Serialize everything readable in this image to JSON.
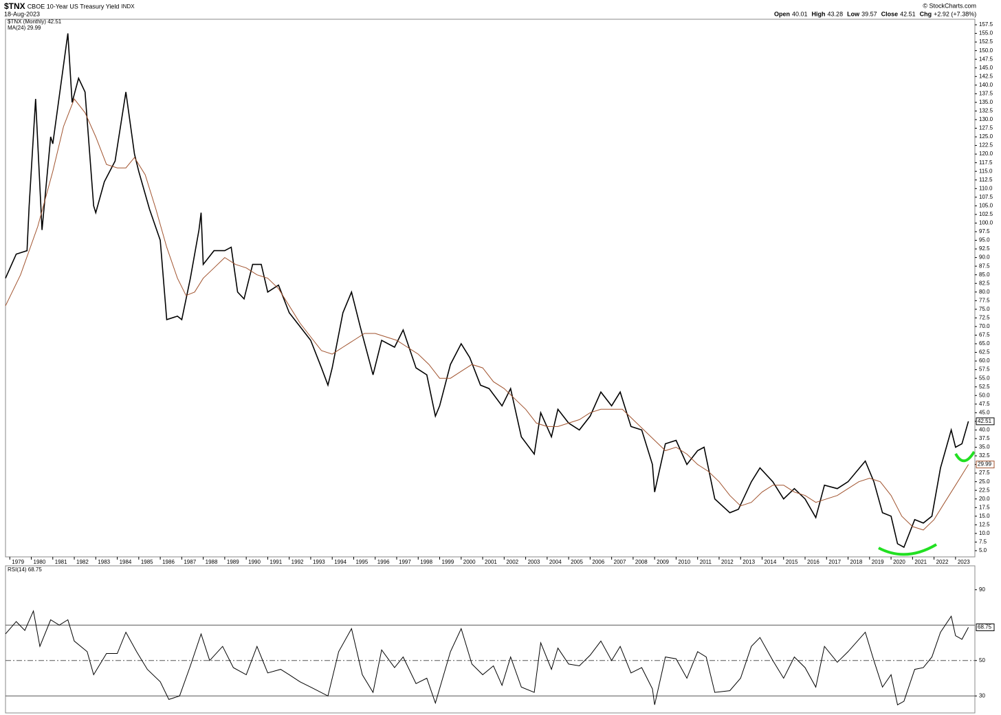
{
  "chart_data": [
    {
      "type": "line",
      "title": "$TNX",
      "subtitle": "CBOE 10-Year US Treasury Yield",
      "exchange": "INDX",
      "date": "18-Aug-2023",
      "source": "© StockCharts.com",
      "quote": [
        {
          "label": "Open",
          "value": 40.01
        },
        {
          "label": "High",
          "value": 43.28
        },
        {
          "label": "Low",
          "value": 39.57
        },
        {
          "label": "Close",
          "value": 42.51
        },
        {
          "label": "Chg",
          "value": "+2.92 (+7.38%)"
        }
      ],
      "xlim": [
        1978.8,
        2023.9
      ],
      "xticks": [
        1979,
        1980,
        1981,
        1982,
        1983,
        1984,
        1985,
        1986,
        1987,
        1988,
        1989,
        1990,
        1991,
        1992,
        1993,
        1994,
        1995,
        1996,
        1997,
        1998,
        1999,
        2000,
        2001,
        2002,
        2003,
        2004,
        2005,
        2006,
        2007,
        2008,
        2009,
        2010,
        2011,
        2012,
        2013,
        2014,
        2015,
        2016,
        2017,
        2018,
        2019,
        2020,
        2021,
        2022,
        2023
      ],
      "ylim": [
        3.2,
        159.1
      ],
      "yticks": [
        {
          "value": 5,
          "label": "5.0"
        },
        7.5,
        {
          "value": 10,
          "label": "10.0"
        },
        12.5,
        {
          "value": 15,
          "label": "15.0"
        },
        17.5,
        {
          "value": 20,
          "label": "20.0"
        },
        22.5,
        {
          "value": 25,
          "label": "25.0"
        },
        27.5,
        {
          "value": 30,
          "label": "30.0"
        },
        32.5,
        {
          "value": 35,
          "label": "35.0"
        },
        37.5,
        {
          "value": 40,
          "label": "40.0"
        },
        42.5,
        {
          "value": 45,
          "label": "45.0"
        },
        47.5,
        {
          "value": 50,
          "label": "50.0"
        },
        52.5,
        {
          "value": 55,
          "label": "55.0"
        },
        57.5,
        {
          "value": 60,
          "label": "60.0"
        },
        62.5,
        {
          "value": 65,
          "label": "65.0"
        },
        67.5,
        {
          "value": 70,
          "label": "70.0"
        },
        72.5,
        {
          "value": 75,
          "label": "75.0"
        },
        77.5,
        {
          "value": 80,
          "label": "80.0"
        },
        82.5,
        {
          "value": 85,
          "label": "85.0"
        },
        87.5,
        {
          "value": 90,
          "label": "90.0"
        },
        92.5,
        {
          "value": 95,
          "label": "95.0"
        },
        97.5,
        {
          "value": 100,
          "label": "100.0"
        },
        102.5,
        {
          "value": 105,
          "label": "105.0"
        },
        107.5,
        {
          "value": 110,
          "label": "110.0"
        },
        112.5,
        {
          "value": 115,
          "label": "115.0"
        },
        117.5,
        {
          "value": 120,
          "label": "120.0"
        },
        122.5,
        {
          "value": 125,
          "label": "125.0"
        },
        127.5,
        {
          "value": 130,
          "label": "130.0"
        },
        132.5,
        {
          "value": 135,
          "label": "135.0"
        },
        137.5,
        {
          "value": 140,
          "label": "140.0"
        },
        142.5,
        {
          "value": 145,
          "label": "145.0"
        },
        147.5,
        {
          "value": 150,
          "label": "150.0"
        },
        152.5,
        {
          "value": 155,
          "label": "155.0"
        },
        157.5
      ],
      "series": [
        {
          "name": "$TNX (Monthly) 42.51",
          "color": "#000000",
          "tag": "42.51",
          "x": [
            1978.8,
            1979.3,
            1979.8,
            1979.9,
            1980.2,
            1980.5,
            1980.9,
            1981.0,
            1981.7,
            1981.9,
            1982.2,
            1982.5,
            1982.9,
            1983.0,
            1983.4,
            1983.9,
            1984.4,
            1984.8,
            1985.0,
            1985.5,
            1986.0,
            1986.3,
            1986.8,
            1987.0,
            1987.4,
            1987.8,
            1987.9,
            1988.0,
            1988.5,
            1989.0,
            1989.3,
            1989.6,
            1989.9,
            1990.3,
            1990.7,
            1991.0,
            1991.5,
            1992.0,
            1992.5,
            1993.0,
            1993.5,
            1993.8,
            1994.0,
            1994.5,
            1994.9,
            1995.3,
            1995.9,
            1996.3,
            1996.9,
            1997.3,
            1997.9,
            1998.4,
            1998.8,
            1999.0,
            1999.5,
            2000.0,
            2000.4,
            2000.9,
            2001.3,
            2001.9,
            2002.3,
            2002.8,
            2003.4,
            2003.7,
            2004.2,
            2004.5,
            2005.0,
            2005.5,
            2006.0,
            2006.5,
            2007.0,
            2007.4,
            2007.9,
            2008.4,
            2008.9,
            2009.0,
            2009.5,
            2010.0,
            2010.5,
            2011.0,
            2011.3,
            2011.8,
            2012.5,
            2012.9,
            2013.5,
            2013.9,
            2014.5,
            2015.0,
            2015.5,
            2016.0,
            2016.5,
            2016.9,
            2017.5,
            2018.0,
            2018.8,
            2019.2,
            2019.6,
            2020.0,
            2020.3,
            2020.6,
            2021.1,
            2021.5,
            2021.9,
            2022.3,
            2022.8,
            2023.0,
            2023.3,
            2023.6
          ],
          "values": [
            84,
            91,
            92,
            105,
            136,
            98,
            125,
            123,
            155,
            135,
            142,
            138,
            105,
            103,
            112,
            118,
            138,
            120,
            115,
            104,
            95,
            72,
            73,
            72,
            84,
            98,
            103,
            88,
            92,
            92,
            93,
            80,
            78,
            88,
            88,
            80,
            82,
            74,
            70,
            66,
            58,
            53,
            58,
            74,
            80,
            70,
            56,
            66,
            64,
            69,
            58,
            56,
            44,
            47,
            59,
            65,
            61,
            53,
            52,
            47,
            52,
            38,
            33,
            45,
            38,
            46,
            42,
            40,
            44,
            51,
            47,
            51,
            41,
            40,
            30,
            22,
            36,
            37,
            30,
            34,
            35,
            20,
            16,
            17,
            25,
            29,
            25,
            20,
            23,
            20,
            14.6,
            24,
            23,
            25,
            31,
            25,
            16,
            15,
            7,
            6,
            14,
            13,
            15,
            29,
            40,
            35,
            36,
            42.51
          ]
        },
        {
          "name": "MA(24) 29.99",
          "color": "#a0522d",
          "tag": "29.99",
          "x": [
            1978.8,
            1979.5,
            1980.3,
            1981.0,
            1981.5,
            1982.0,
            1982.5,
            1983.0,
            1983.5,
            1984.0,
            1984.4,
            1984.8,
            1985.3,
            1985.8,
            1986.3,
            1986.8,
            1987.2,
            1987.6,
            1988.0,
            1988.5,
            1989.0,
            1989.5,
            1990.0,
            1990.5,
            1991.0,
            1991.5,
            1992.0,
            1992.5,
            1993.0,
            1993.5,
            1994.0,
            1994.5,
            1995.0,
            1995.5,
            1996.0,
            1996.5,
            1997.0,
            1997.5,
            1998.0,
            1998.5,
            1999.0,
            1999.5,
            2000.0,
            2000.5,
            2001.0,
            2001.5,
            2002.0,
            2002.5,
            2003.0,
            2003.5,
            2004.0,
            2004.5,
            2005.0,
            2005.5,
            2006.0,
            2006.5,
            2007.0,
            2007.5,
            2008.0,
            2008.5,
            2009.0,
            2009.5,
            2010.0,
            2010.5,
            2011.0,
            2011.5,
            2012.0,
            2012.5,
            2013.0,
            2013.5,
            2014.0,
            2014.5,
            2015.0,
            2015.5,
            2016.0,
            2016.5,
            2017.0,
            2017.5,
            2018.0,
            2018.5,
            2019.0,
            2019.5,
            2020.0,
            2020.5,
            2021.0,
            2021.5,
            2022.0,
            2022.5,
            2023.0,
            2023.6
          ],
          "values": [
            76,
            85,
            99,
            115,
            128,
            136,
            132,
            125,
            117,
            116,
            116,
            119,
            114,
            104,
            93,
            84,
            79,
            80,
            84,
            87,
            90,
            88,
            87,
            85,
            84,
            81,
            76,
            71,
            67,
            63,
            62,
            64,
            66,
            68,
            68,
            67,
            66,
            64,
            62,
            59,
            55,
            55,
            57,
            59,
            58,
            54,
            52,
            49,
            46,
            42,
            41,
            41,
            42,
            43,
            45,
            46,
            46,
            46,
            43,
            40,
            37,
            34,
            35,
            33,
            30,
            28,
            25,
            21,
            18,
            19,
            22,
            24,
            24,
            22,
            21,
            19,
            20,
            21,
            23,
            25,
            26,
            25,
            21,
            15,
            12,
            11,
            14,
            19,
            24,
            29.99
          ]
        }
      ]
    },
    {
      "type": "line",
      "title": "RSI(14) 68.75",
      "xlim": [
        1978.8,
        2023.9
      ],
      "ylim": [
        20.4,
        103.5
      ],
      "yticks": [
        30,
        50,
        90
      ],
      "levels": [
        30,
        50,
        70
      ],
      "series": [
        {
          "name": "RSI(14)",
          "color": "#000000",
          "tag": "68.75",
          "x": [
            1978.8,
            1979.3,
            1979.7,
            1980.1,
            1980.4,
            1980.9,
            1981.3,
            1981.7,
            1982.0,
            1982.6,
            1982.9,
            1983.5,
            1984.0,
            1984.4,
            1984.9,
            1985.4,
            1986.0,
            1986.4,
            1986.9,
            1987.4,
            1987.9,
            1988.3,
            1988.9,
            1989.4,
            1990.0,
            1990.5,
            1991.0,
            1991.6,
            1992.0,
            1992.5,
            1993.0,
            1993.8,
            1994.3,
            1994.9,
            1995.4,
            1995.9,
            1996.3,
            1996.9,
            1997.3,
            1997.9,
            1998.4,
            1998.8,
            1999.5,
            2000.0,
            2000.5,
            2001.0,
            2001.5,
            2001.9,
            2002.3,
            2002.8,
            2003.4,
            2003.7,
            2004.2,
            2004.5,
            2005.0,
            2005.5,
            2006.0,
            2006.5,
            2007.0,
            2007.4,
            2007.9,
            2008.4,
            2008.9,
            2009.0,
            2009.5,
            2010.0,
            2010.5,
            2011.0,
            2011.4,
            2011.8,
            2012.5,
            2013.0,
            2013.5,
            2013.9,
            2014.5,
            2015.0,
            2015.5,
            2016.0,
            2016.5,
            2016.9,
            2017.5,
            2018.0,
            2018.8,
            2019.2,
            2019.6,
            2020.0,
            2020.3,
            2020.6,
            2021.1,
            2021.5,
            2021.9,
            2022.3,
            2022.8,
            2023.0,
            2023.3,
            2023.6
          ],
          "values": [
            65,
            72,
            67,
            78,
            58,
            73,
            70,
            73,
            61,
            55,
            42,
            54,
            54,
            66,
            55,
            45,
            38,
            28,
            30,
            47,
            65,
            50,
            58,
            46,
            42,
            58,
            43,
            45,
            42,
            38,
            35,
            30,
            55,
            68,
            42,
            32,
            56,
            46,
            52,
            37,
            40,
            26,
            55,
            68,
            48,
            42,
            47,
            36,
            52,
            35,
            32,
            60,
            45,
            57,
            48,
            47,
            53,
            61,
            50,
            58,
            43,
            46,
            34,
            25,
            52,
            51,
            40,
            55,
            52,
            32,
            33,
            40,
            58,
            63,
            50,
            40,
            52,
            46,
            35,
            58,
            49,
            55,
            66,
            50,
            35,
            42,
            25,
            27,
            45,
            46,
            52,
            66,
            75,
            64,
            62,
            68.75
          ]
        }
      ]
    }
  ]
}
